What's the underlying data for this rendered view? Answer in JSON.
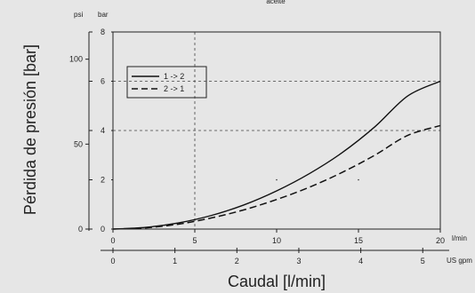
{
  "chart_data": {
    "type": "line",
    "title": "aceite",
    "xlabel": "Caudal [l/min]",
    "ylabel": "Pérdida de presión [bar]",
    "x_unit": "l/min",
    "x2_unit": "US gpm",
    "y_unit": "bar",
    "y2_unit": "psi",
    "xlim": [
      0,
      20
    ],
    "ylim": [
      0,
      8
    ],
    "x_ticks": [
      "0",
      "5",
      "10",
      "15",
      "20"
    ],
    "x2_ticks": [
      "0",
      "1",
      "2",
      "3",
      "4",
      "5"
    ],
    "y_ticks": [
      "0",
      "2",
      "4",
      "6",
      "8"
    ],
    "y2_ticks": [
      "0",
      "50",
      "100"
    ],
    "grid": false,
    "legend_position": "upper-left",
    "reference_lines": {
      "x": 5,
      "y": [
        4,
        6
      ]
    },
    "series": [
      {
        "name": "1 -> 2",
        "style": "solid",
        "x": [
          0,
          2,
          4,
          6,
          8,
          10,
          12,
          14,
          16,
          18,
          20
        ],
        "y": [
          0.0,
          0.07,
          0.25,
          0.55,
          0.98,
          1.55,
          2.25,
          3.1,
          4.15,
          5.4,
          6.0
        ]
      },
      {
        "name": "2 -> 1",
        "style": "dashed",
        "x": [
          0,
          2,
          4,
          6,
          8,
          10,
          12,
          14,
          16,
          18,
          20
        ],
        "y": [
          0.0,
          0.05,
          0.2,
          0.45,
          0.78,
          1.2,
          1.7,
          2.3,
          3.0,
          3.8,
          4.2
        ]
      }
    ]
  }
}
